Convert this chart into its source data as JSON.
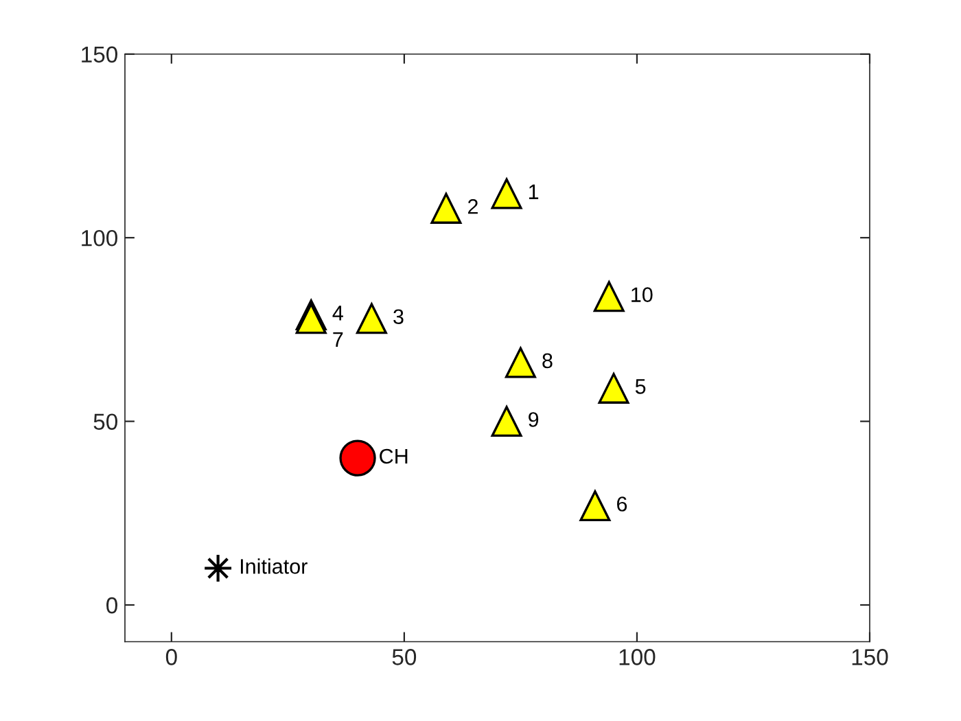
{
  "chart_data": {
    "type": "scatter",
    "xlim": [
      -10,
      150
    ],
    "ylim": [
      -10,
      150
    ],
    "xticks": [
      0,
      50,
      100,
      150
    ],
    "yticks": [
      0,
      50,
      100,
      150
    ],
    "grid": false,
    "legend": false,
    "series": [
      {
        "color": "#ffff00",
        "marker": "triangle",
        "x": [
          72,
          59,
          43,
          30,
          95,
          91,
          30,
          75,
          72,
          94
        ],
        "values": [
          112,
          108,
          78,
          79,
          59,
          27,
          78,
          66,
          50,
          84
        ]
      },
      {
        "color": "#ff0000",
        "marker": "circle",
        "x": [
          40
        ],
        "values": [
          40
        ]
      },
      {
        "color": "#000000",
        "marker": "star",
        "x": [
          10
        ],
        "values": [
          10
        ]
      }
    ],
    "annotations": [
      {
        "text": "1",
        "x": 72,
        "y": 112
      },
      {
        "text": "2",
        "x": 59,
        "y": 108
      },
      {
        "text": "3",
        "x": 43,
        "y": 78
      },
      {
        "text": "4",
        "x": 30,
        "y": 79
      },
      {
        "text": "5",
        "x": 95,
        "y": 59
      },
      {
        "text": "6",
        "x": 91,
        "y": 27
      },
      {
        "text": "7",
        "x": 30,
        "y": 78
      },
      {
        "text": "8",
        "x": 75,
        "y": 66
      },
      {
        "text": "9",
        "x": 72,
        "y": 50
      },
      {
        "text": "10",
        "x": 94,
        "y": 84
      },
      {
        "text": "CH",
        "x": 40,
        "y": 40
      },
      {
        "text": "Initiator",
        "x": 10,
        "y": 10
      }
    ]
  }
}
